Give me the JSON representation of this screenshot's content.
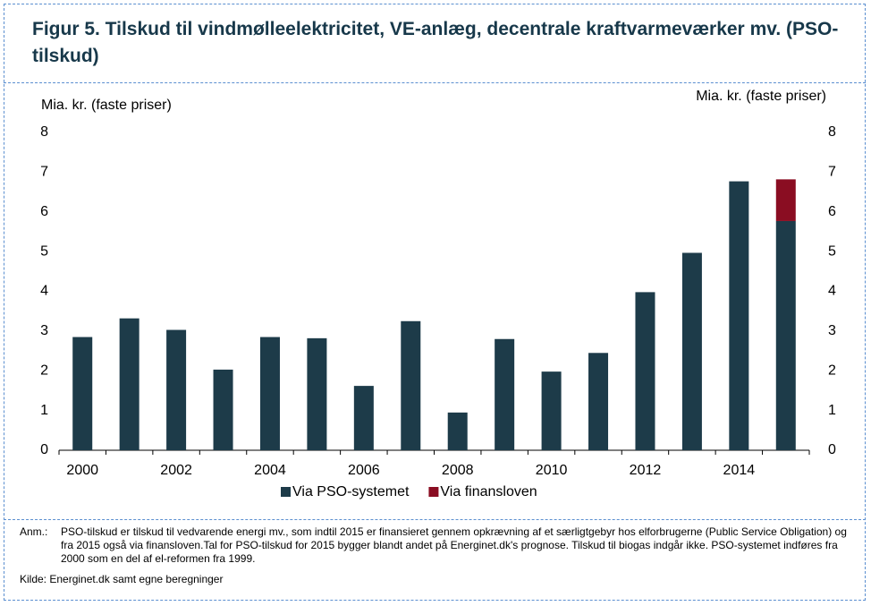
{
  "chart_data": {
    "type": "bar",
    "stacked": true,
    "title": "Figur 5. Tilskud til vindmølleelektricitet,  VE-anlæg, decentrale  kraftvarmeværker mv. (PSO-tilskud)",
    "y_label": "Mia. kr. (faste priser)",
    "y2_label": "Mia. kr. (faste priser)",
    "categories": [
      "2000",
      null,
      "2002",
      null,
      "2004",
      null,
      "2006",
      null,
      "2008",
      null,
      "2010",
      null,
      "2012",
      null,
      "2014",
      null
    ],
    "series": [
      {
        "name": "Via PSO-systemet",
        "color": "#1d3b49",
        "values": [
          2.85,
          3.32,
          3.03,
          2.03,
          2.85,
          2.82,
          1.62,
          3.25,
          0.95,
          2.8,
          1.98,
          2.45,
          3.98,
          4.97,
          6.77,
          5.77
        ]
      },
      {
        "name": "Via finansloven",
        "color": "#8a0d22",
        "values": [
          null,
          null,
          null,
          null,
          null,
          null,
          null,
          null,
          null,
          null,
          null,
          null,
          null,
          null,
          null,
          1.05
        ]
      }
    ],
    "ylim": [
      0,
      8
    ],
    "yticks": [
      0,
      1,
      2,
      3,
      4,
      5,
      6,
      7,
      8
    ],
    "y2lim": [
      0,
      8
    ],
    "y2ticks": [
      0,
      1,
      2,
      3,
      4,
      5,
      6,
      7,
      8
    ],
    "legend": "bottom",
    "note_label": "Anm.:",
    "note": "PSO-tilskud er tilskud til vedvarende energi mv., som indtil 2015 er finansieret gennem opkrævning af et særligtgebyr hos elforbrugerne (Public Service Obligation) og fra 2015 også via finansloven.Tal for PSO-tilskud for 2015 bygger blandt andet på Energinet.dk's prognose. Tilskud til biogas indgår ikke. PSO-systemet indføres fra 2000 som en del af el-reformen fra 1999.",
    "source": "Kilde: Energinet.dk samt egne beregninger"
  }
}
